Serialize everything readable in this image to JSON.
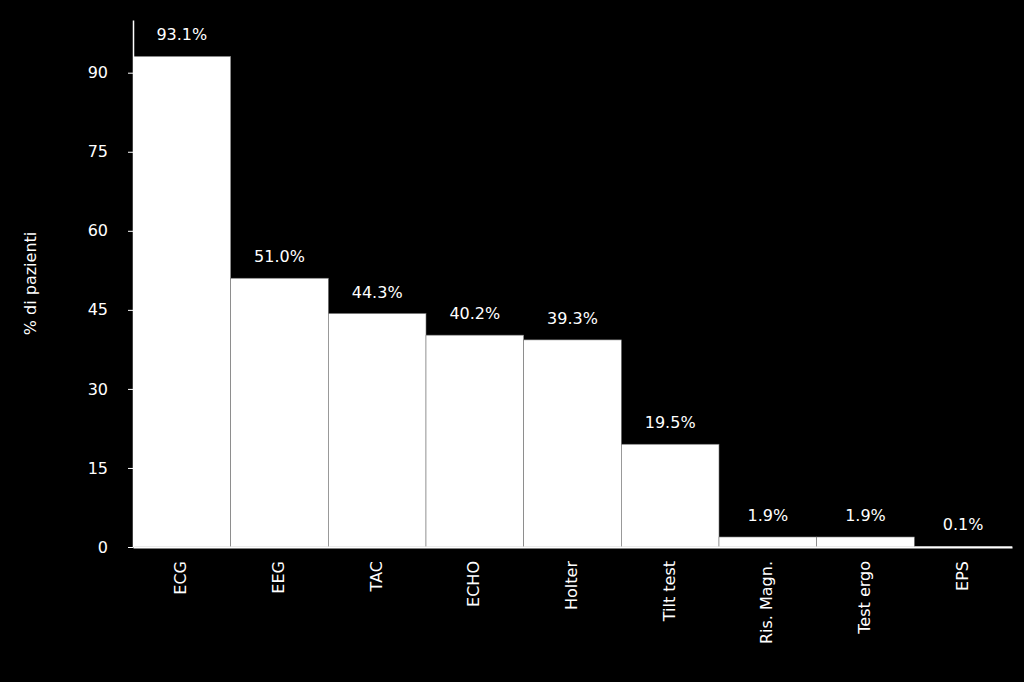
{
  "chart_data": {
    "type": "bar",
    "y_label": "% di pazienti",
    "categories": [
      "ECG",
      "EEG",
      "TAC",
      "ECHO",
      "Holter",
      "Tilt test",
      "Ris. Magn.",
      "Test ergo",
      "EPS"
    ],
    "values": [
      93.1,
      51.0,
      44.3,
      40.2,
      39.3,
      19.5,
      1.9,
      1.9,
      0.1
    ],
    "value_labels": [
      "93.1%",
      "51.0%",
      "44.3%",
      "40.2%",
      "39.3%",
      "19.5%",
      "1.9%",
      "1.9%",
      "0.1%"
    ],
    "color": "#ffffff",
    "ylim": [
      0,
      100
    ],
    "yticks": [
      0,
      15,
      30,
      45,
      60,
      75,
      90
    ],
    "grid": false,
    "data_labels": true
  }
}
